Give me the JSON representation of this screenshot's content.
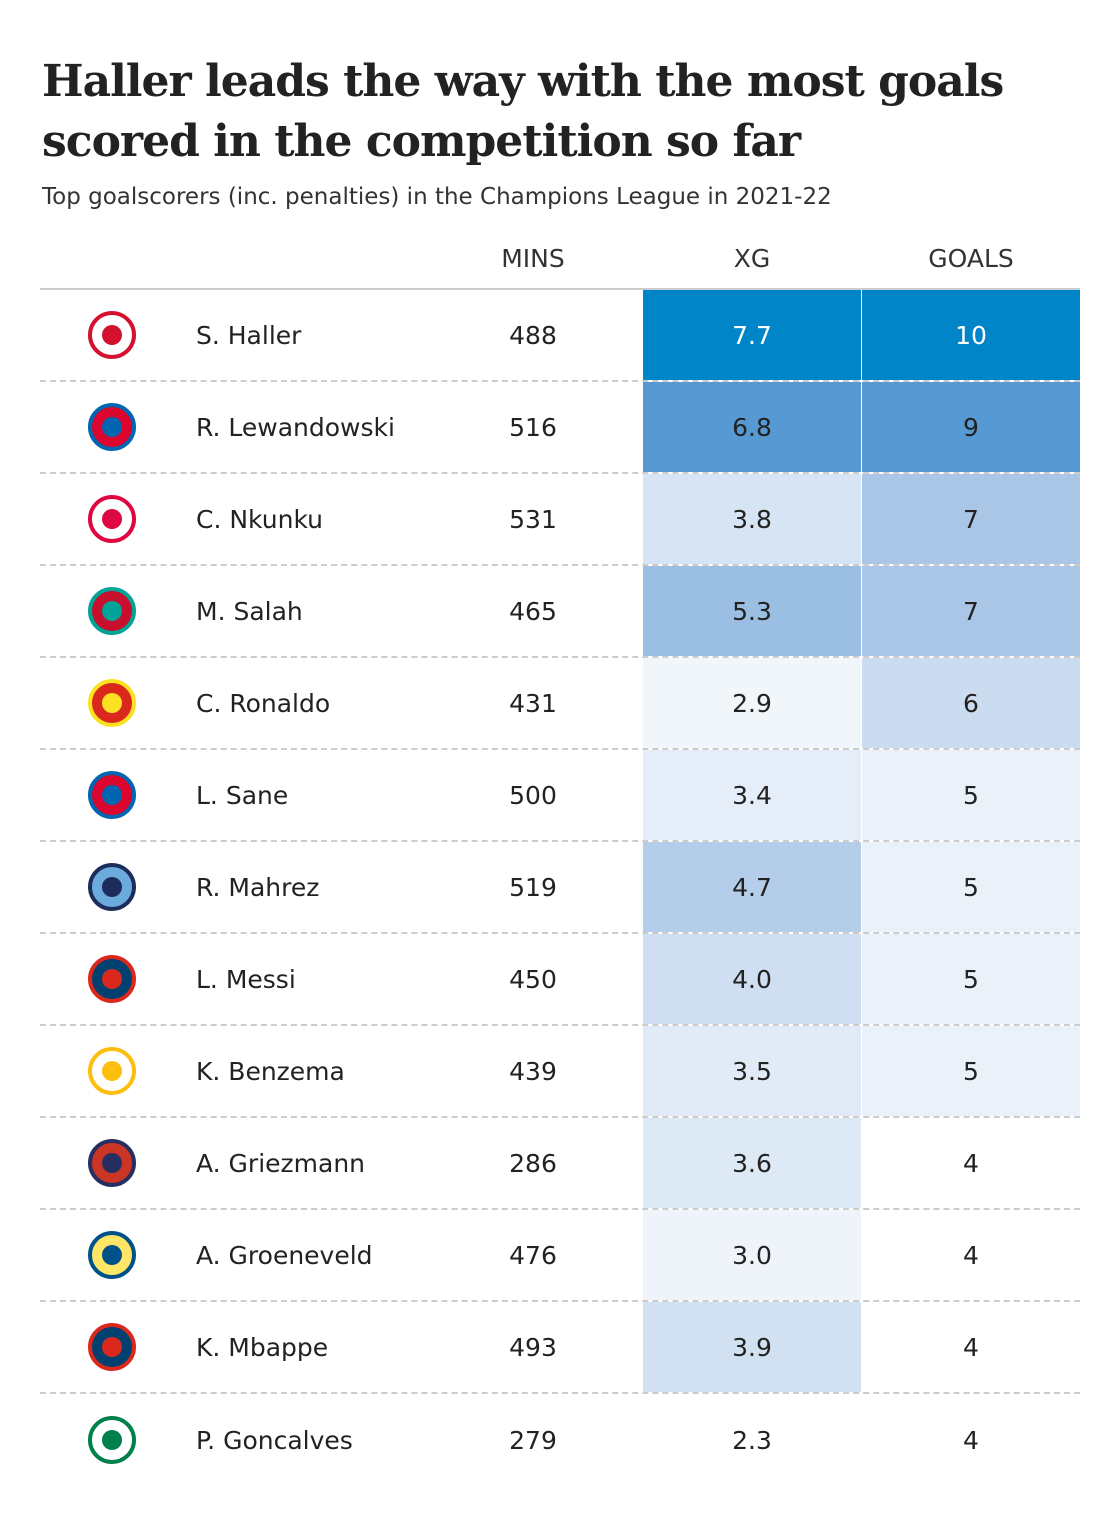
{
  "title": "Haller leads the way with the most goals scored in the competition so far",
  "subtitle": "Top goalscorers (inc. penalties) in the Champions League in 2021-22",
  "chart_data": {
    "type": "table",
    "columns": [
      "",
      "",
      "MINS",
      "XG",
      "GOALS"
    ],
    "rows": [
      {
        "club_icon": "ajax-crest-icon",
        "player": "S. Haller",
        "mins": "488",
        "xg": "7.7",
        "goals": "10"
      },
      {
        "club_icon": "bayern-munich-crest-icon",
        "player": "R. Lewandowski",
        "mins": "516",
        "xg": "6.8",
        "goals": "9"
      },
      {
        "club_icon": "rb-leipzig-crest-icon",
        "player": "C. Nkunku",
        "mins": "531",
        "xg": "3.8",
        "goals": "7"
      },
      {
        "club_icon": "liverpool-crest-icon",
        "player": "M. Salah",
        "mins": "465",
        "xg": "5.3",
        "goals": "7"
      },
      {
        "club_icon": "manchester-united-crest-icon",
        "player": "C. Ronaldo",
        "mins": "431",
        "xg": "2.9",
        "goals": "6"
      },
      {
        "club_icon": "bayern-munich-crest-icon",
        "player": "L. Sane",
        "mins": "500",
        "xg": "3.4",
        "goals": "5"
      },
      {
        "club_icon": "manchester-city-crest-icon",
        "player": "R. Mahrez",
        "mins": "519",
        "xg": "4.7",
        "goals": "5"
      },
      {
        "club_icon": "psg-crest-icon",
        "player": "L. Messi",
        "mins": "450",
        "xg": "4.0",
        "goals": "5"
      },
      {
        "club_icon": "real-madrid-crest-icon",
        "player": "K. Benzema",
        "mins": "439",
        "xg": "3.5",
        "goals": "5"
      },
      {
        "club_icon": "atletico-madrid-crest-icon",
        "player": "A. Griezmann",
        "mins": "286",
        "xg": "3.6",
        "goals": "4"
      },
      {
        "club_icon": "villarreal-crest-icon",
        "player": "A. Groeneveld",
        "mins": "476",
        "xg": "3.0",
        "goals": "4"
      },
      {
        "club_icon": "psg-crest-icon",
        "player": "K. Mbappe",
        "mins": "493",
        "xg": "3.9",
        "goals": "4"
      },
      {
        "club_icon": "sporting-cp-crest-icon",
        "player": "P. Goncalves",
        "mins": "279",
        "xg": "2.3",
        "goals": "4"
      }
    ],
    "color_scale": {
      "low": "#ffffff",
      "high": "#0085c8"
    }
  }
}
